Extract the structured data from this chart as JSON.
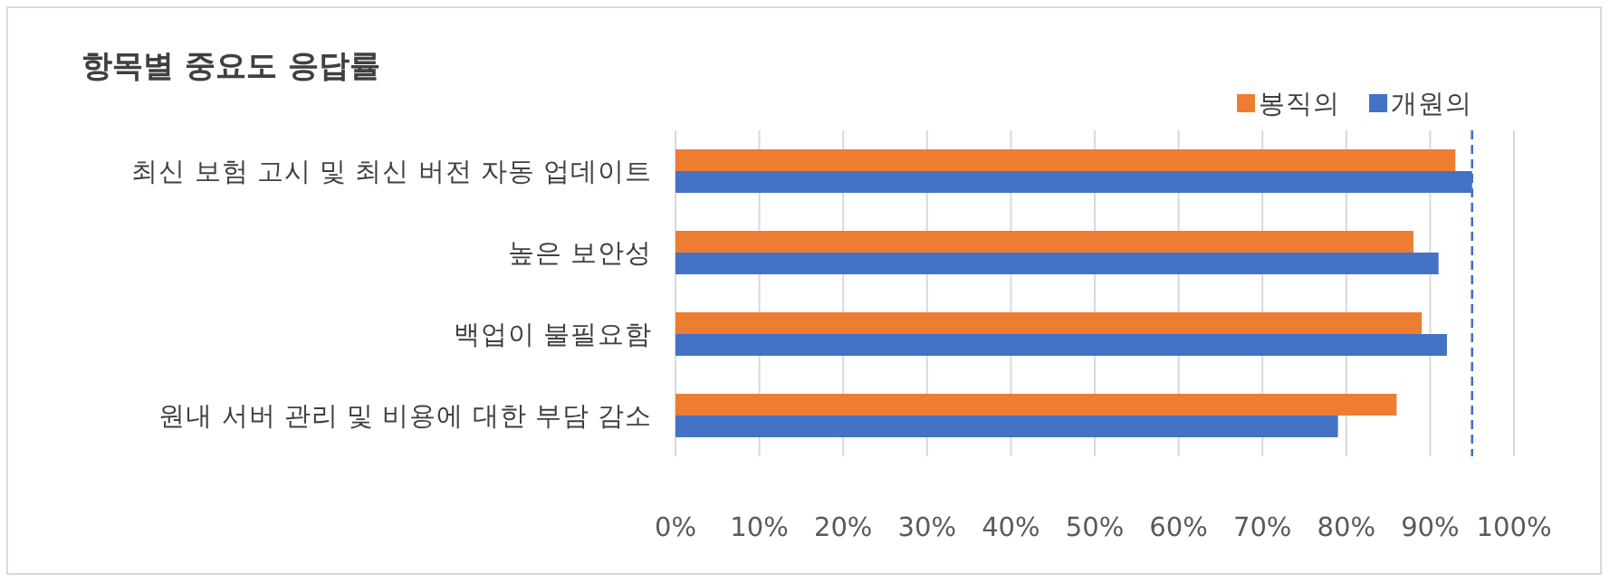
{
  "chart_data": {
    "type": "bar",
    "orientation": "horizontal",
    "title": "항목별 중요도 응답률",
    "categories": [
      "최신 보험 고시 및 최신 버전 자동 업데이트",
      "높은 보안성",
      "백업이 불필요함",
      "원내 서버 관리 및 비용에 대한 부담 감소"
    ],
    "series": [
      {
        "name": "봉직의",
        "color": "#ed7d31",
        "values": [
          93,
          88,
          89,
          86
        ]
      },
      {
        "name": "개원의",
        "color": "#4472c4",
        "values": [
          95,
          91,
          92,
          79
        ]
      }
    ],
    "xlim": [
      0,
      100
    ],
    "xticks": [
      {
        "value": 0,
        "label": "0%"
      },
      {
        "value": 10,
        "label": "10%"
      },
      {
        "value": 20,
        "label": "20%"
      },
      {
        "value": 30,
        "label": "30%"
      },
      {
        "value": 40,
        "label": "40%"
      },
      {
        "value": 50,
        "label": "50%"
      },
      {
        "value": 60,
        "label": "60%"
      },
      {
        "value": 70,
        "label": "70%"
      },
      {
        "value": 80,
        "label": "80%"
      },
      {
        "value": 90,
        "label": "90%"
      },
      {
        "value": 100,
        "label": "100%"
      }
    ],
    "grid": "x",
    "legend": "top right",
    "ref_lines": [
      {
        "axis": "x",
        "value": 95,
        "color": "#4472c4",
        "line_style": "dashed"
      }
    ]
  }
}
